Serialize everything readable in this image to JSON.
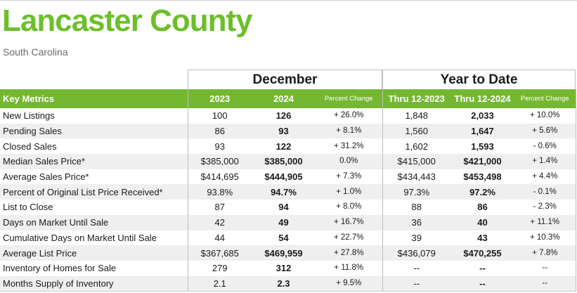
{
  "title": "Lancaster County",
  "subtitle": "South Carolina",
  "groups": {
    "december": "December",
    "ytd": "Year to Date"
  },
  "colors": {
    "title_green": "#6cbf2a",
    "header_green": "#74b832",
    "stripe": "#efefef"
  },
  "headers": {
    "key_metrics": "Key Metrics",
    "y2023": "2023",
    "y2024": "2024",
    "pct_change": "Percent Change",
    "thru2023": "Thru 12-2023",
    "thru2024": "Thru 12-2024",
    "pct_change_ytd": "Percent Change"
  },
  "rows": [
    {
      "metric": "New Listings",
      "m2023": "100",
      "m2024": "126",
      "mpct": "+ 26.0%",
      "y2023": "1,848",
      "y2024": "2,033",
      "ypct": "+ 10.0%"
    },
    {
      "metric": "Pending Sales",
      "m2023": "86",
      "m2024": "93",
      "mpct": "+ 8.1%",
      "y2023": "1,560",
      "y2024": "1,647",
      "ypct": "+ 5.6%"
    },
    {
      "metric": "Closed Sales",
      "m2023": "93",
      "m2024": "122",
      "mpct": "+ 31.2%",
      "y2023": "1,602",
      "y2024": "1,593",
      "ypct": "- 0.6%"
    },
    {
      "metric": "Median Sales Price*",
      "m2023": "$385,000",
      "m2024": "$385,000",
      "mpct": "0.0%",
      "y2023": "$415,000",
      "y2024": "$421,000",
      "ypct": "+ 1.4%"
    },
    {
      "metric": "Average Sales Price*",
      "m2023": "$414,695",
      "m2024": "$444,905",
      "mpct": "+ 7.3%",
      "y2023": "$434,443",
      "y2024": "$453,498",
      "ypct": "+ 4.4%"
    },
    {
      "metric": "Percent of Original List Price Received*",
      "m2023": "93.8%",
      "m2024": "94.7%",
      "mpct": "+ 1.0%",
      "y2023": "97.3%",
      "y2024": "97.2%",
      "ypct": "- 0.1%"
    },
    {
      "metric": "List to Close",
      "m2023": "87",
      "m2024": "94",
      "mpct": "+ 8.0%",
      "y2023": "88",
      "y2024": "86",
      "ypct": "- 2.3%"
    },
    {
      "metric": "Days on Market Until Sale",
      "m2023": "42",
      "m2024": "49",
      "mpct": "+ 16.7%",
      "y2023": "36",
      "y2024": "40",
      "ypct": "+ 11.1%"
    },
    {
      "metric": "Cumulative Days on Market Until Sale",
      "m2023": "44",
      "m2024": "54",
      "mpct": "+ 22.7%",
      "y2023": "39",
      "y2024": "43",
      "ypct": "+ 10.3%"
    },
    {
      "metric": "Average List Price",
      "m2023": "$367,685",
      "m2024": "$469,959",
      "mpct": "+ 27.8%",
      "y2023": "$436,079",
      "y2024": "$470,255",
      "ypct": "+ 7.8%"
    },
    {
      "metric": "Inventory of Homes for Sale",
      "m2023": "279",
      "m2024": "312",
      "mpct": "+ 11.8%",
      "y2023": "--",
      "y2024": "--",
      "ypct": "--"
    },
    {
      "metric": "Months Supply of Inventory",
      "m2023": "2.1",
      "m2024": "2.3",
      "mpct": "+ 9.5%",
      "y2023": "--",
      "y2024": "--",
      "ypct": "--"
    }
  ]
}
